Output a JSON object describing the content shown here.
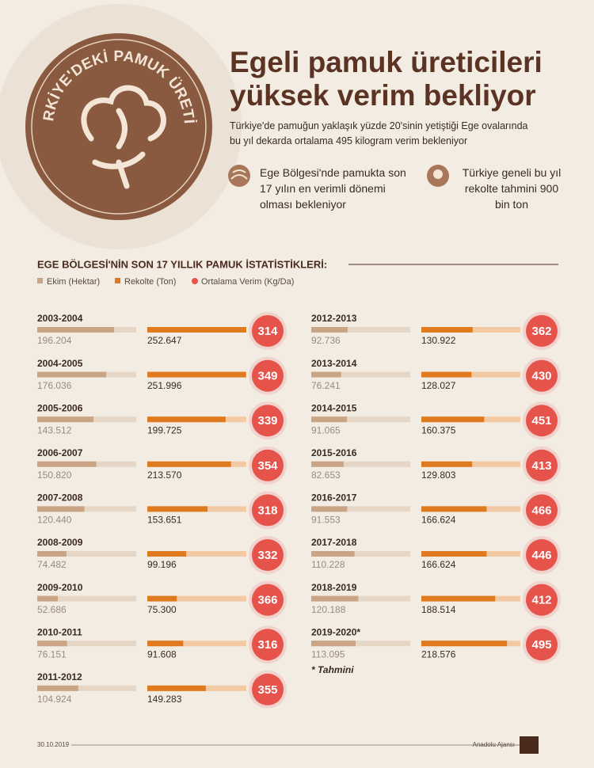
{
  "badge": "TÜRKİYE'DEKİ PAMUK ÜRETİMİ",
  "title": "Egeli pamuk üreticileri yüksek verim bekliyor",
  "subtitle": "Türkiye'de pamuğun yaklaşık yüzde 20'sinin yetiştiği Ege ovalarında bu yıl dekarda ortalama 495 kilogram verim bekleniyor",
  "facts": [
    "Ege Bölgesi'nde pamukta son 17 yılın en verimli dönemi olması bekleniyor",
    "Türkiye geneli bu yıl rekolte tahmini 900 bin ton"
  ],
  "chart_data": {
    "type": "bar",
    "title": "EGE BÖLGESİ'NİN SON 17 YILLIK PAMUK İSTATİSTİKLERİ:",
    "categories": [
      "2003-2004",
      "2004-2005",
      "2005-2006",
      "2006-2007",
      "2007-2008",
      "2008-2009",
      "2009-2010",
      "2010-2011",
      "2011-2012",
      "2012-2013",
      "2013-2014",
      "2014-2015",
      "2015-2016",
      "2016-2017",
      "2017-2018",
      "2018-2019",
      "2019-2020*"
    ],
    "series": [
      {
        "name": "Ekim (Hektar)",
        "color": "#c9a585",
        "values": [
          196204,
          176036,
          143512,
          150820,
          120440,
          74482,
          52686,
          76151,
          104924,
          92736,
          76241,
          91065,
          82653,
          91553,
          110228,
          120188,
          113095
        ],
        "value_labels": [
          "196.204",
          "176.036",
          "143.512",
          "150.820",
          "120.440",
          "74.482",
          "52.686",
          "76.151",
          "104.924",
          "92.736",
          "76.241",
          "91.065",
          "82.653",
          "91.553",
          "110.228",
          "120.188",
          "113.095"
        ]
      },
      {
        "name": "Rekolte (Ton)",
        "color": "#e07a1f",
        "values": [
          252647,
          251996,
          199725,
          213570,
          153651,
          99196,
          75300,
          91608,
          149283,
          130922,
          128027,
          160375,
          129803,
          166624,
          166624,
          188514,
          218576
        ],
        "value_labels": [
          "252.647",
          "251.996",
          "199.725",
          "213.570",
          "153.651",
          "99.196",
          "75.300",
          "91.608",
          "149.283",
          "130.922",
          "128.027",
          "160.375",
          "129.803",
          "166.624",
          "166.624",
          "188.514",
          "218.576"
        ]
      },
      {
        "name": "Ortalama Verim (Kg/Da)",
        "color": "#e5534b",
        "values": [
          314,
          349,
          339,
          354,
          318,
          332,
          366,
          316,
          355,
          362,
          430,
          451,
          413,
          466,
          446,
          412,
          495
        ]
      }
    ],
    "note": "* Tahmini"
  },
  "footer": {
    "date": "30.10.2019",
    "source": "Anadolu Ajansı"
  }
}
